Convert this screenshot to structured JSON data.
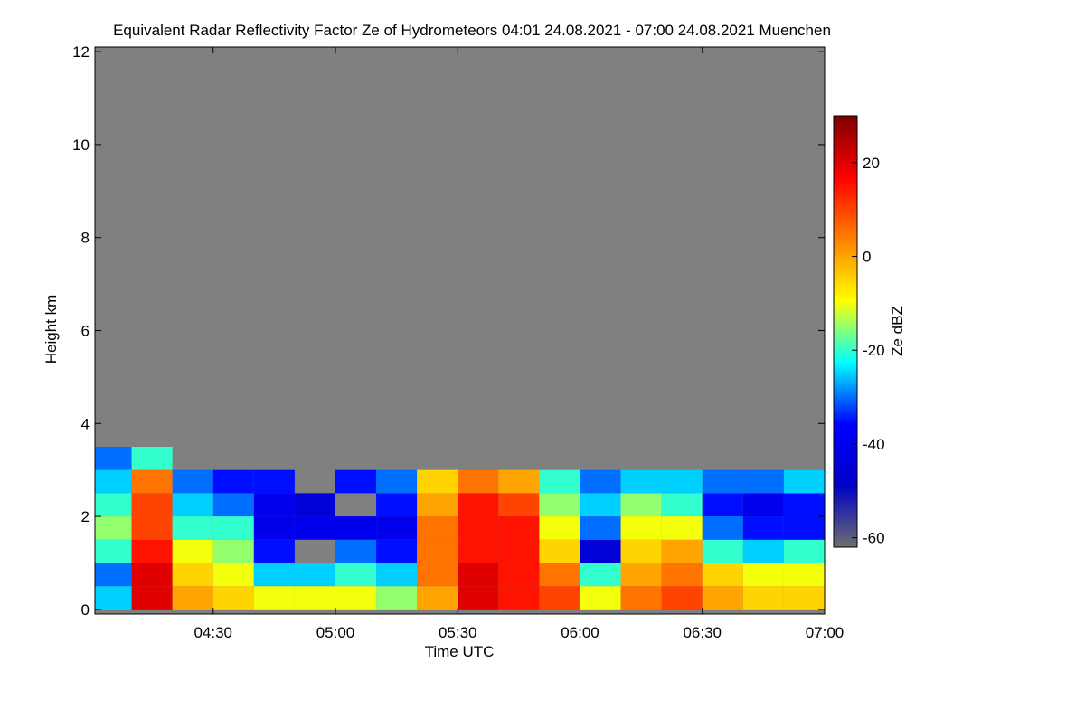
{
  "chart_data": {
    "type": "heatmap",
    "title": "Equivalent Radar Reflectivity Factor Ze of Hydrometeors   04:01 24.08.2021 - 07:00 24.08.2021 Muenchen",
    "x_label": "Time UTC",
    "y_label": "Height km",
    "colorbar_label": "Ze dBZ",
    "x": [
      "04:05",
      "04:15",
      "04:25",
      "04:35",
      "04:45",
      "04:55",
      "05:05",
      "05:15",
      "05:25",
      "05:35",
      "05:45",
      "05:55",
      "06:05",
      "06:15",
      "06:25",
      "06:35",
      "06:45",
      "06:55"
    ],
    "y": [
      0.25,
      0.75,
      1.25,
      1.75,
      2.25,
      2.75,
      3.25
    ],
    "z": [
      [
        -25,
        20,
        0,
        -5,
        -10,
        -10,
        -10,
        -15,
        0,
        20,
        15,
        10,
        -10,
        5,
        10,
        0,
        -5,
        -5
      ],
      [
        -30,
        20,
        -5,
        -10,
        -25,
        -25,
        -20,
        -25,
        5,
        20,
        15,
        5,
        -20,
        0,
        5,
        -5,
        -10,
        -10
      ],
      [
        -20,
        15,
        -10,
        -15,
        -35,
        null,
        -30,
        -35,
        5,
        15,
        15,
        -5,
        -45,
        -5,
        0,
        -20,
        -25,
        -20
      ],
      [
        -15,
        10,
        -20,
        -20,
        -40,
        -40,
        -40,
        -40,
        5,
        15,
        15,
        -10,
        -30,
        -10,
        -10,
        -30,
        -35,
        -35
      ],
      [
        -20,
        10,
        -25,
        -30,
        -40,
        -45,
        null,
        -35,
        0,
        15,
        10,
        -15,
        -25,
        -15,
        -20,
        -35,
        -40,
        -35
      ],
      [
        -25,
        5,
        -30,
        -35,
        -35,
        null,
        -35,
        -30,
        -5,
        5,
        0,
        -20,
        -30,
        -25,
        -25,
        -30,
        -30,
        -25
      ],
      [
        -30,
        -20,
        null,
        null,
        null,
        null,
        null,
        null,
        null,
        null,
        null,
        null,
        null,
        null,
        null,
        null,
        null,
        null
      ]
    ],
    "xlim": [
      "04:01",
      "07:00"
    ],
    "xticks": [
      "04:30",
      "05:00",
      "05:30",
      "06:00",
      "06:30",
      "07:00"
    ],
    "ylim": [
      -0.1,
      12.1
    ],
    "yticks": [
      0,
      2,
      4,
      6,
      8,
      10,
      12
    ],
    "clim": [
      -62,
      30
    ],
    "cticks": [
      -60,
      -40,
      -20,
      0,
      20
    ],
    "colormap": [
      "#6e6e6e",
      "#0000c8",
      "#0000ff",
      "#00ffff",
      "#ffff00",
      "#ff8000",
      "#ff0000",
      "#800000"
    ],
    "background": "#808080"
  }
}
